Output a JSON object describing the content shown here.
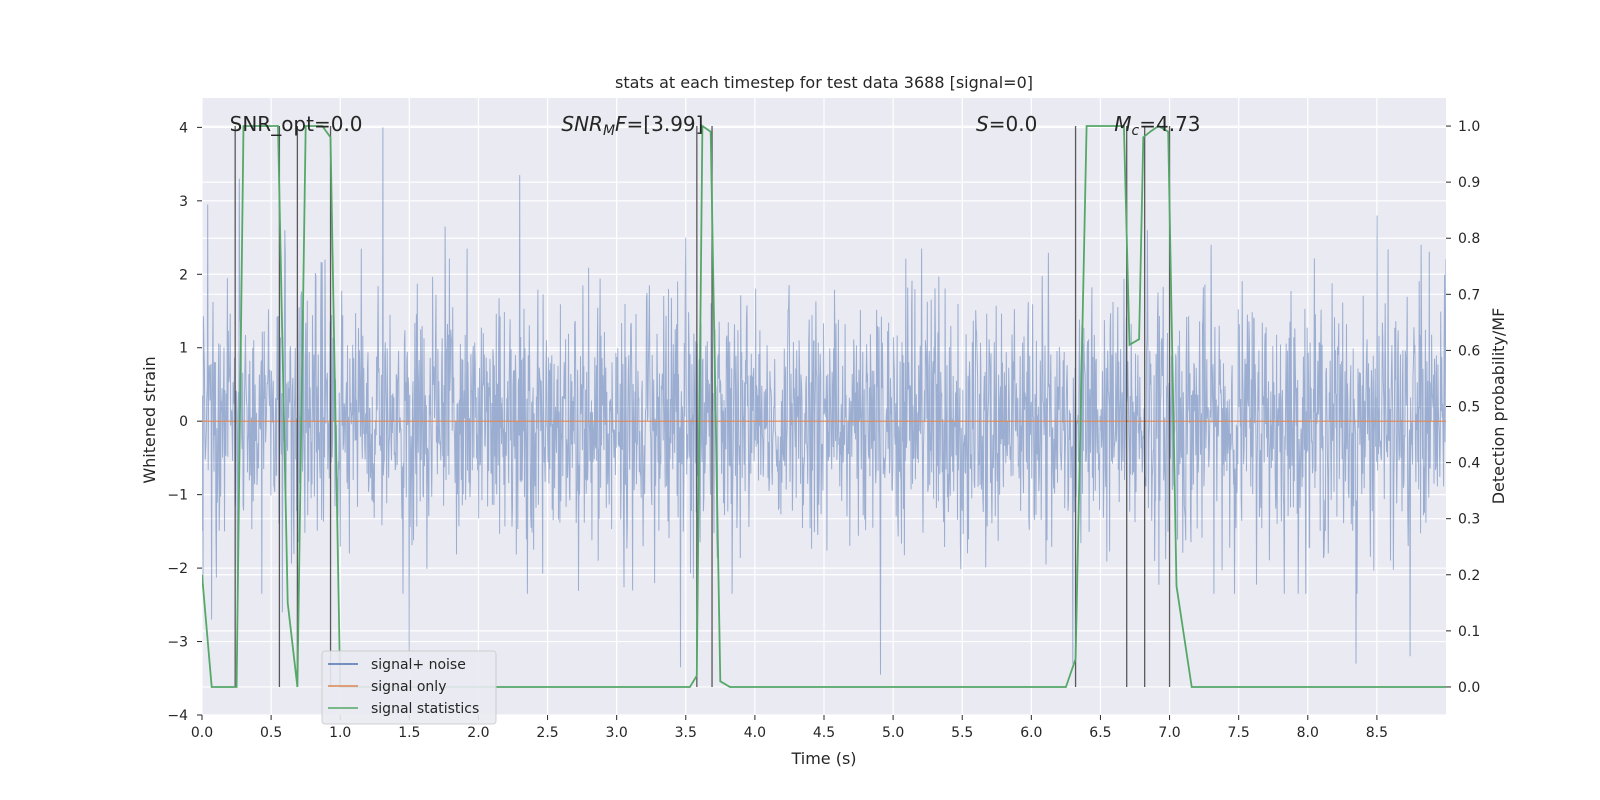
{
  "chart_data": {
    "type": "line",
    "title": "stats at each timestep for test data 3688 [signal=0]",
    "xlabel": "Time (s)",
    "ylabel_left": "Whitened strain",
    "ylabel_right": "Detection probability/MF",
    "xlim": [
      0.0,
      9.0
    ],
    "ylim_left": [
      -4.0,
      4.4
    ],
    "ylim_right": [
      -0.05,
      1.05
    ],
    "x_ticks": [
      0.0,
      0.5,
      1.0,
      1.5,
      2.0,
      2.5,
      3.0,
      3.5,
      4.0,
      4.5,
      5.0,
      5.5,
      6.0,
      6.5,
      7.0,
      7.5,
      8.0,
      8.5
    ],
    "x_tick_labels": [
      "0.0",
      "0.5",
      "1.0",
      "1.5",
      "2.0",
      "2.5",
      "3.0",
      "3.5",
      "4.0",
      "4.5",
      "5.0",
      "5.5",
      "6.0",
      "6.5",
      "7.0",
      "7.5",
      "8.0",
      "8.5"
    ],
    "y_left_ticks": [
      4,
      3,
      2,
      1,
      0,
      -1,
      -2,
      -3,
      -4
    ],
    "y_left_tick_labels": [
      "4",
      "3",
      "2",
      "1",
      "0",
      "−1",
      "−2",
      "−3",
      "−4"
    ],
    "y_right_ticks": [
      1.0,
      0.9,
      0.8,
      0.7,
      0.6,
      0.5,
      0.4,
      0.3,
      0.2,
      0.1,
      0.0
    ],
    "y_right_tick_labels": [
      "1.0",
      "0.9",
      "0.8",
      "0.7",
      "0.6",
      "0.5",
      "0.4",
      "0.3",
      "0.2",
      "0.1",
      "0.0"
    ],
    "grid": true,
    "legend_position": "lower-left",
    "series": [
      {
        "name": "signal+ noise",
        "axis": "left",
        "color": "#4c72b0",
        "style": "dense noise, amplitude roughly ±1.6, peaks up to 4.0 and down to -3.6",
        "peaks": [
          [
            0.04,
            2.95
          ],
          [
            0.27,
            3.3
          ],
          [
            0.6,
            2.6
          ],
          [
            0.89,
            2.2
          ],
          [
            1.31,
            4.0
          ],
          [
            1.76,
            2.65
          ],
          [
            2.3,
            3.35
          ],
          [
            3.5,
            2.5
          ],
          [
            6.84,
            2.6
          ],
          [
            7.3,
            2.4
          ],
          [
            8.5,
            2.8
          ],
          [
            8.82,
            2.4
          ]
        ],
        "troughs": [
          [
            0.07,
            -2.7
          ],
          [
            0.58,
            -2.6
          ],
          [
            1.5,
            -3.3
          ],
          [
            3.46,
            -3.35
          ],
          [
            4.91,
            -3.45
          ],
          [
            6.3,
            -3.3
          ],
          [
            8.35,
            -3.3
          ],
          [
            8.74,
            -3.2
          ]
        ]
      },
      {
        "name": "signal only",
        "axis": "left",
        "color": "#dd8452",
        "x": [
          0.0,
          9.0
        ],
        "y": [
          0.0,
          0.0
        ]
      },
      {
        "name": "signal statistics",
        "axis": "right",
        "color": "#55a868",
        "x": [
          0.0,
          0.07,
          0.25,
          0.3,
          0.55,
          0.62,
          0.69,
          0.75,
          0.87,
          0.93,
          1.0,
          3.53,
          3.58,
          3.62,
          3.68,
          3.75,
          3.82,
          6.0,
          6.25,
          6.32,
          6.4,
          6.67,
          6.71,
          6.78,
          6.81,
          6.86,
          6.92,
          6.99,
          7.05,
          7.16,
          7.25,
          9.0
        ],
        "y": [
          0.2,
          0.0,
          0.0,
          1.0,
          1.0,
          0.15,
          0.0,
          1.0,
          1.0,
          0.98,
          0.0,
          0.0,
          0.02,
          1.0,
          0.99,
          0.01,
          0.0,
          0.0,
          0.0,
          0.05,
          1.0,
          1.0,
          0.61,
          0.62,
          0.98,
          0.99,
          1.0,
          0.99,
          0.18,
          0.0,
          0.0,
          0.0
        ]
      }
    ],
    "event_lines": [
      0.24,
      0.56,
      0.69,
      0.93,
      3.58,
      3.69,
      6.32,
      6.69,
      6.82,
      7.0
    ],
    "annotations": [
      {
        "text": "SNR_opt=0.0",
        "x": 0.2,
        "y_right": 1.0
      },
      {
        "text": "SNR_M F=[3.99]",
        "x": 2.6,
        "y_right": 1.0
      },
      {
        "text": "S=0.0",
        "x": 5.6,
        "y_right": 1.0
      },
      {
        "text": "M_c=4.73",
        "x": 6.6,
        "y_right": 1.0
      }
    ]
  },
  "legend": {
    "items": [
      {
        "label": "signal+ noise",
        "color": "#4c72b0"
      },
      {
        "label": "signal only",
        "color": "#dd8452"
      },
      {
        "label": "signal statistics",
        "color": "#55a868"
      }
    ]
  },
  "colors": {
    "plot_bg": "#eaeaf2",
    "grid": "#ffffff",
    "event_line": "#404040"
  }
}
